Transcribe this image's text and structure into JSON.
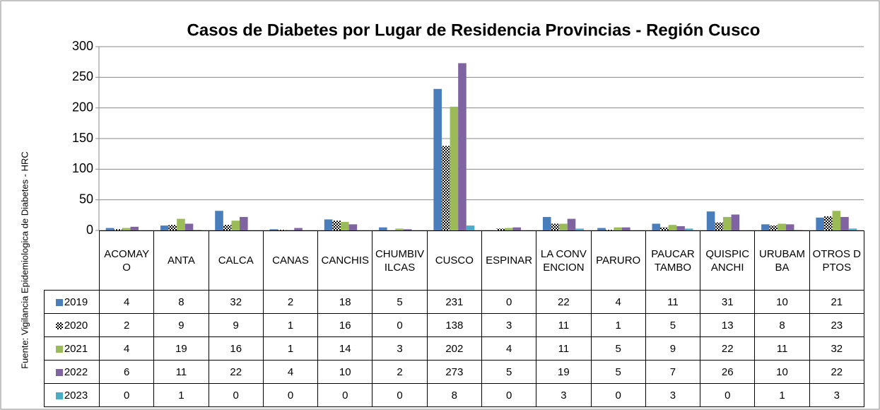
{
  "chart_data": {
    "type": "bar",
    "title": "Casos de Diabetes por Lugar de Residencia Provincias - Región Cusco",
    "y_label": "Fuente: Vigilancia Epidemiologica de Diabetes - HRC",
    "categories": [
      "ACOMAYO",
      "ANTA",
      "CALCA",
      "CANAS",
      "CANCHIS",
      "CHUMBIVILCAS",
      "CUSCO",
      "ESPINAR",
      "LA CONVENCION",
      "PARURO",
      "PAUCARTAMBO",
      "QUISPICANCHI",
      "URUBAMBA",
      "OTROS DPTOS"
    ],
    "series": [
      {
        "name": "2019",
        "color": "#4a7ebb",
        "values": [
          4,
          8,
          32,
          2,
          18,
          5,
          231,
          0,
          22,
          4,
          11,
          31,
          10,
          21
        ]
      },
      {
        "name": "2020",
        "color": "#000000",
        "pattern": true,
        "values": [
          2,
          9,
          9,
          1,
          16,
          0,
          138,
          3,
          11,
          1,
          5,
          13,
          8,
          23
        ]
      },
      {
        "name": "2021",
        "color": "#9bbb59",
        "values": [
          4,
          19,
          16,
          1,
          14,
          3,
          202,
          4,
          11,
          5,
          9,
          22,
          11,
          32
        ]
      },
      {
        "name": "2022",
        "color": "#8064a2",
        "values": [
          6,
          11,
          22,
          4,
          10,
          2,
          273,
          5,
          19,
          5,
          7,
          26,
          10,
          22
        ]
      },
      {
        "name": "2023",
        "color": "#4bacc6",
        "values": [
          0,
          1,
          0,
          0,
          0,
          0,
          8,
          0,
          3,
          0,
          3,
          0,
          1,
          3
        ]
      }
    ],
    "ylim": [
      0,
      300
    ],
    "yticks": [
      0,
      50,
      100,
      150,
      200,
      250,
      300
    ],
    "grid": true
  }
}
